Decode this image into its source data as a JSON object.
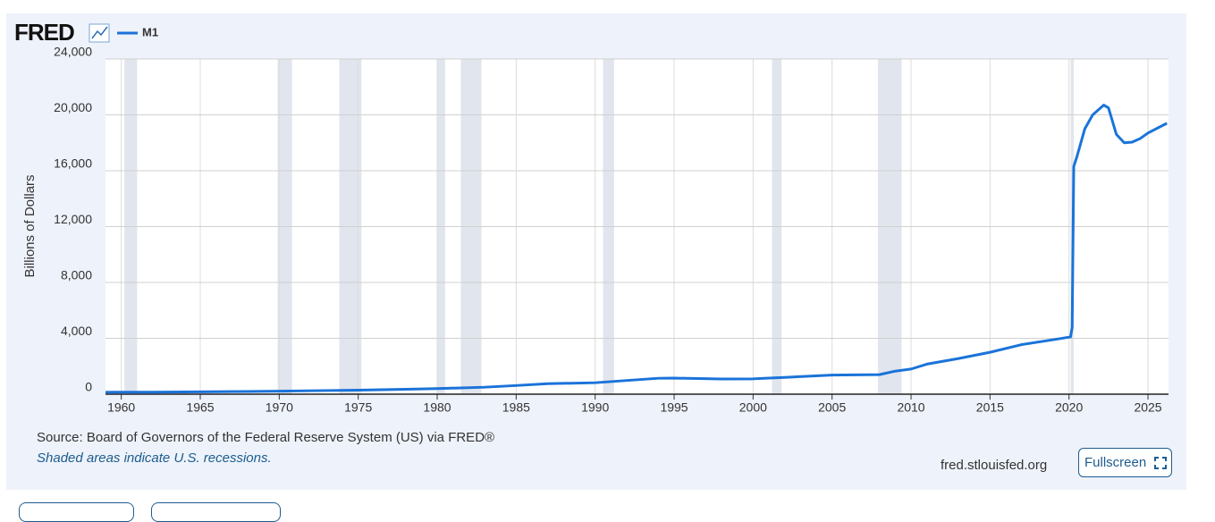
{
  "logo": "FRED",
  "chart_data": {
    "type": "line",
    "ylabel": "Billions of Dollars",
    "x": [
      1959,
      1962,
      1965,
      1968,
      1970,
      1973,
      1975,
      1978,
      1980,
      1983,
      1985,
      1987,
      1990,
      1992,
      1994,
      1995,
      1998,
      2000,
      2001,
      2002,
      2005,
      2008,
      2009,
      2010,
      2011,
      2013,
      2015,
      2017,
      2019,
      2020.1,
      2020.2,
      2020.3,
      2020.5,
      2021,
      2021.5,
      2022.2,
      2022.5,
      2023,
      2023.5,
      2024,
      2024.5,
      2025,
      2026.2
    ],
    "series": [
      {
        "name": "M1",
        "color": "#1a73d9",
        "values": [
          140,
          148,
          168,
          195,
          215,
          260,
          290,
          350,
          400,
          500,
          620,
          750,
          820,
          980,
          1140,
          1150,
          1090,
          1100,
          1150,
          1200,
          1370,
          1400,
          1650,
          1800,
          2150,
          2550,
          3000,
          3550,
          3900,
          4100,
          4800,
          16300,
          17000,
          19000,
          20000,
          20700,
          20500,
          18600,
          18000,
          18050,
          18300,
          18700,
          19400
        ]
      }
    ],
    "recessions": [
      [
        1960.2,
        1961.0
      ],
      [
        1969.9,
        1970.8
      ],
      [
        1973.8,
        1975.2
      ],
      [
        1980.0,
        1980.5
      ],
      [
        1981.5,
        1982.8
      ],
      [
        1990.5,
        1991.2
      ],
      [
        2001.2,
        2001.8
      ],
      [
        2007.9,
        2009.4
      ],
      [
        2020.1,
        2020.3
      ]
    ],
    "xlim": [
      1959,
      2026.3
    ],
    "xticks": [
      1960,
      1965,
      1970,
      1975,
      1980,
      1985,
      1990,
      1995,
      2000,
      2005,
      2010,
      2015,
      2020,
      2025
    ],
    "ylim": [
      0,
      24000
    ],
    "yticks": [
      0,
      {
        "value": 4000,
        "label": "4,000"
      },
      {
        "value": 8000,
        "label": "8,000"
      },
      {
        "value": 12000,
        "label": "12,000"
      },
      {
        "value": 16000,
        "label": "16,000"
      },
      {
        "value": 20000,
        "label": "20,000"
      },
      {
        "value": 24000,
        "label": "24,000"
      }
    ],
    "grid": true
  },
  "source": "Source: Board of Governors of the Federal Reserve System (US) via FRED®",
  "note": "Shaded areas indicate U.S. recessions.",
  "site": "fred.stlouisfed.org",
  "button": "Fullscreen"
}
